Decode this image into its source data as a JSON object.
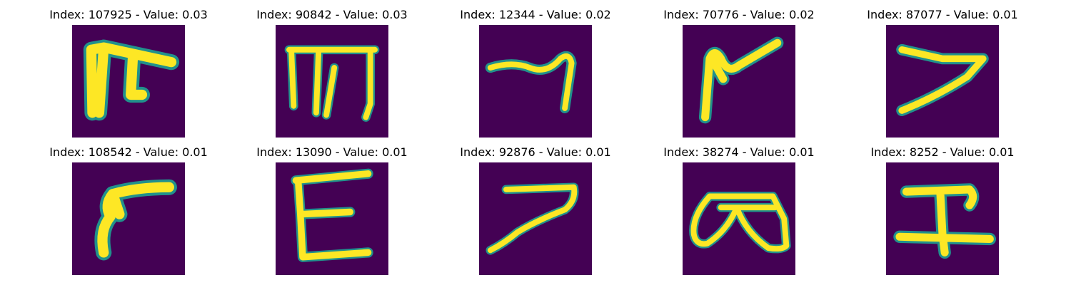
{
  "colors": {
    "background": "#440154",
    "stroke_edge": "#21918c",
    "stroke_core": "#fde725"
  },
  "panels": [
    {
      "title": "Index: 107925 - Value: 0.03"
    },
    {
      "title": "Index: 90842 - Value: 0.03"
    },
    {
      "title": "Index: 12344 - Value: 0.02"
    },
    {
      "title": "Index: 70776 - Value: 0.02"
    },
    {
      "title": "Index: 87077 - Value: 0.01"
    },
    {
      "title": "Index: 108542 - Value: 0.01"
    },
    {
      "title": "Index: 13090 - Value: 0.01"
    },
    {
      "title": "Index: 92876 - Value: 0.01"
    },
    {
      "title": "Index: 38274 - Value: 0.01"
    },
    {
      "title": "Index: 8252 - Value: 0.01"
    }
  ]
}
